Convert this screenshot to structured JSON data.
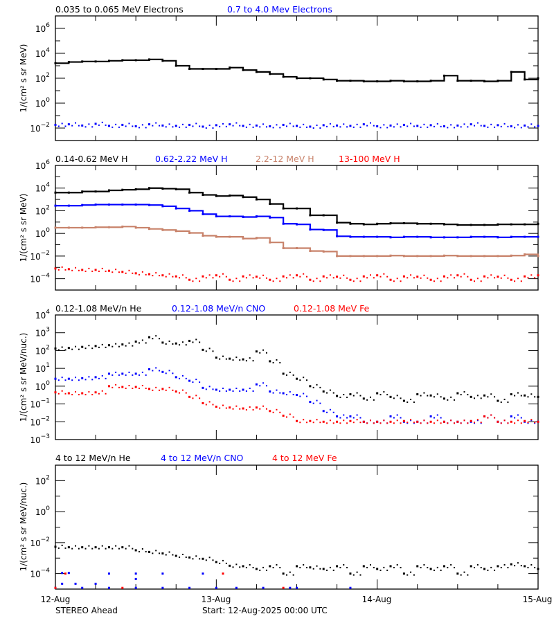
{
  "footer": {
    "left": "STEREO Ahead",
    "start": "Start: 12-Aug-2025 00:00 UTC"
  },
  "x_axis": {
    "tick_labels": [
      "12-Aug",
      "13-Aug",
      "14-Aug",
      "15-Aug"
    ],
    "range_hours": [
      0,
      72
    ],
    "major_every_hours": 24,
    "minor_every_hours": 6
  },
  "chart_data": [
    {
      "type": "line",
      "ylabel": "1/(cm² s sr MeV)",
      "yscale": "log",
      "ylim": [
        0.001,
        10000000.0
      ],
      "ytick_exponents": [
        6,
        4,
        2,
        0,
        -2
      ],
      "x_hours_step": 2,
      "series": [
        {
          "name": "0.035 to 0.065 MeV Electrons",
          "color": "#000000",
          "style": "line",
          "values": [
            1600,
            2000,
            2200,
            2200,
            2500,
            2800,
            2800,
            3200,
            2500,
            1000,
            560,
            560,
            560,
            710,
            450,
            320,
            220,
            130,
            100,
            100,
            79,
            63,
            63,
            56,
            56,
            63,
            56,
            56,
            63,
            160,
            63,
            63,
            56,
            63,
            320,
            79,
            100
          ]
        },
        {
          "name": "0.7 to 4.0 Mev Electrons",
          "color": "#0000ff",
          "style": "dots",
          "values": [
            0.018,
            0.02,
            0.016,
            0.022,
            0.015,
            0.018,
            0.014,
            0.02,
            0.016,
            0.015,
            0.018,
            0.013,
            0.017,
            0.02,
            0.015,
            0.016,
            0.014,
            0.018,
            0.015,
            0.013,
            0.017,
            0.016,
            0.015,
            0.02,
            0.014,
            0.016,
            0.018,
            0.015,
            0.017,
            0.014,
            0.016,
            0.02,
            0.015,
            0.017,
            0.014,
            0.016,
            0.015
          ]
        }
      ]
    },
    {
      "type": "line",
      "ylabel": "1/(cm² s sr MeV)",
      "yscale": "log",
      "ylim": [
        1e-05,
        1000000.0
      ],
      "ytick_exponents": [
        6,
        4,
        2,
        0,
        -2,
        -4
      ],
      "x_hours_step": 2,
      "series": [
        {
          "name": "0.14-0.62 MeV H",
          "color": "#000000",
          "style": "line",
          "values": [
            4000,
            4000,
            5000,
            5000,
            6300,
            7100,
            7900,
            10000,
            8900,
            7900,
            4000,
            2500,
            2000,
            2200,
            1600,
            1000,
            400,
            160,
            160,
            40,
            40,
            8.9,
            7.1,
            6.3,
            7.1,
            7.9,
            7.9,
            7.1,
            7.1,
            6.3,
            5.6,
            5.6,
            5.6,
            6.3,
            6.3,
            6.3,
            7.1
          ]
        },
        {
          "name": "0.62-2.22 MeV H",
          "color": "#0000ff",
          "style": "line",
          "values": [
            280,
            280,
            320,
            350,
            350,
            350,
            350,
            320,
            250,
            160,
            100,
            50,
            32,
            32,
            28,
            32,
            25,
            7.1,
            6.3,
            2.2,
            2.0,
            0.56,
            0.5,
            0.5,
            0.5,
            0.45,
            0.5,
            0.5,
            0.45,
            0.45,
            0.45,
            0.5,
            0.5,
            0.45,
            0.5,
            0.5,
            0.5
          ]
        },
        {
          "name": "2.2-12 MeV H",
          "color": "#c8826a",
          "style": "line",
          "values": [
            3.2,
            3.2,
            3.2,
            3.5,
            3.5,
            4.0,
            3.2,
            2.5,
            2.0,
            1.6,
            1.1,
            0.63,
            0.5,
            0.5,
            0.35,
            0.4,
            0.16,
            0.05,
            0.05,
            0.028,
            0.025,
            0.01,
            0.01,
            0.01,
            0.01,
            0.011,
            0.01,
            0.01,
            0.01,
            0.011,
            0.01,
            0.01,
            0.01,
            0.01,
            0.011,
            0.014,
            0.01
          ]
        },
        {
          "name": "13-100 MeV H",
          "color": "#ff0000",
          "style": "dots",
          "values": [
            0.0008,
            0.0007,
            0.0006,
            0.0006,
            0.0005,
            0.0004,
            0.0003,
            0.00025,
            0.0002,
            0.00016,
            8e-05,
            0.00016,
            0.0002,
            8e-05,
            0.00016,
            0.00015,
            8e-05,
            0.00016,
            0.0002,
            8e-05,
            0.00016,
            0.00015,
            8e-05,
            0.00016,
            0.0002,
            8e-05,
            0.00016,
            0.00015,
            8e-05,
            0.00016,
            0.0002,
            8e-05,
            0.00016,
            0.00015,
            8e-05,
            0.00016,
            0.0002
          ]
        }
      ]
    },
    {
      "type": "scatter",
      "ylabel": "1/(cm² s sr MeV/nuc.)",
      "yscale": "log",
      "ylim": [
        0.001,
        10000.0
      ],
      "ytick_exponents": [
        4,
        3,
        2,
        1,
        0,
        -1,
        -2,
        -3
      ],
      "x_hours_step": 2,
      "series": [
        {
          "name": "0.12-1.08 MeV/n He",
          "color": "#000000",
          "style": "dots",
          "values": [
            130,
            140,
            160,
            180,
            200,
            220,
            320,
            560,
            280,
            250,
            350,
            110,
            40,
            35,
            32,
            89,
            25,
            5.0,
            2.6,
            1.0,
            0.5,
            0.28,
            0.35,
            0.2,
            0.4,
            0.25,
            0.15,
            0.35,
            0.3,
            0.2,
            0.4,
            0.25,
            0.3,
            0.15,
            0.35,
            0.3,
            0.25
          ]
        },
        {
          "name": "0.12-1.08 MeV/n CNO",
          "color": "#0000ff",
          "style": "dots",
          "values": [
            2.6,
            2.6,
            2.8,
            3.2,
            5.0,
            5.0,
            5.0,
            8.9,
            6.3,
            3.2,
            2.0,
            0.8,
            0.63,
            0.63,
            0.63,
            1.26,
            0.5,
            0.4,
            0.32,
            0.13,
            0.04,
            0.02,
            0.02,
            0.01,
            0.01,
            0.02,
            0.01,
            0.01,
            0.02,
            0.01,
            0.01,
            0.01,
            0.02,
            0.01,
            0.02,
            0.01,
            0.01
          ]
        },
        {
          "name": "0.12-1.08 MeV Fe",
          "color": "#ff0000",
          "style": "dots",
          "values": [
            0.45,
            0.4,
            0.4,
            0.45,
            1.0,
            0.9,
            0.9,
            0.7,
            0.7,
            0.5,
            0.25,
            0.11,
            0.07,
            0.063,
            0.056,
            0.063,
            0.04,
            0.022,
            0.011,
            0.011,
            0.01,
            0.01,
            0.011,
            0.01,
            0.01,
            0.01,
            0.011,
            0.01,
            0.01,
            0.01,
            0.01,
            0.011,
            0.02,
            0.01,
            0.01,
            0.011,
            0.01
          ]
        }
      ]
    },
    {
      "type": "scatter",
      "ylabel": "1/(cm² s sr MeV/nuc.)",
      "yscale": "log",
      "ylim": [
        1e-05,
        1000.0
      ],
      "ytick_exponents": [
        2,
        0,
        -2,
        -4
      ],
      "x_hours_step": 2,
      "series": [
        {
          "name": "4 to 12 MeV/n He",
          "color": "#000000",
          "style": "dots",
          "values": [
            0.0054,
            0.005,
            0.005,
            0.005,
            0.005,
            0.005,
            0.0032,
            0.0025,
            0.002,
            0.0014,
            0.0011,
            0.0009,
            0.00056,
            0.00032,
            0.0003,
            0.0002,
            0.0003,
            0.0001,
            0.0003,
            0.00025,
            0.0002,
            0.0003,
            0.0001,
            0.0003,
            0.0002,
            0.0003,
            0.0001,
            0.0003,
            0.0002,
            0.0003,
            0.0001,
            0.0003,
            0.0002,
            0.0003,
            0.0004,
            0.0003,
            0.0002
          ]
        },
        {
          "name": "4 to 12 MeV/n CNO",
          "color": "#0000ff",
          "style": "points",
          "points": [
            [
              1,
              0.00011
            ],
            [
              2,
              0.00011
            ],
            [
              1,
              2.2e-05
            ],
            [
              3,
              2.2e-05
            ],
            [
              6,
              2.2e-05
            ],
            [
              8,
              0.0001
            ],
            [
              12,
              0.0001
            ],
            [
              12,
              4.5e-05
            ],
            [
              16,
              0.0001
            ],
            [
              22,
              0.0001
            ],
            [
              0,
              1.2e-05
            ],
            [
              4,
              1.2e-05
            ],
            [
              8,
              1.2e-05
            ],
            [
              12,
              1.2e-05
            ],
            [
              16,
              1.2e-05
            ],
            [
              20,
              1.2e-05
            ],
            [
              24,
              1.2e-05
            ],
            [
              27,
              1.2e-05
            ],
            [
              31,
              1.2e-05
            ],
            [
              35,
              1.2e-05
            ],
            [
              36,
              1.2e-05
            ],
            [
              44,
              1.2e-05
            ]
          ]
        },
        {
          "name": "4 to 12 MeV Fe",
          "color": "#ff0000",
          "style": "points",
          "points": [
            [
              1.5,
              0.0001
            ],
            [
              25,
              0.0001
            ],
            [
              0,
              1.2e-05
            ],
            [
              10,
              1.2e-05
            ],
            [
              34,
              1.2e-05
            ]
          ]
        }
      ]
    }
  ]
}
